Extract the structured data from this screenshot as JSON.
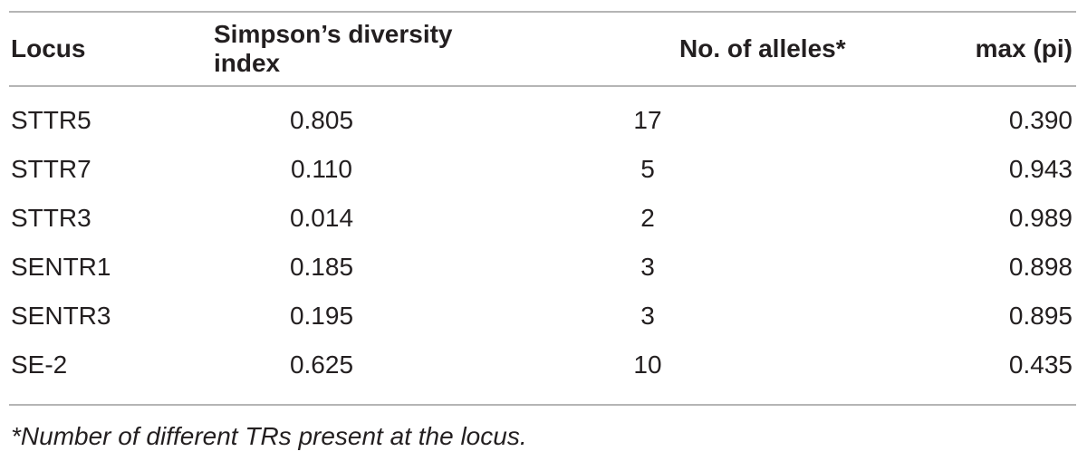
{
  "table": {
    "headers": [
      "Locus",
      "Simpson’s diversity index",
      "No. of alleles*",
      "max (pi)"
    ],
    "rows": [
      [
        "STTR5",
        "0.805",
        "17",
        "0.390"
      ],
      [
        "STTR7",
        "0.110",
        "5",
        "0.943"
      ],
      [
        "STTR3",
        "0.014",
        "2",
        "0.989"
      ],
      [
        "SENTR1",
        "0.185",
        "3",
        "0.898"
      ],
      [
        "SENTR3",
        "0.195",
        "3",
        "0.895"
      ],
      [
        "SE-2",
        "0.625",
        "10",
        "0.435"
      ]
    ]
  },
  "footnote": "*Number of different TRs present at the locus."
}
